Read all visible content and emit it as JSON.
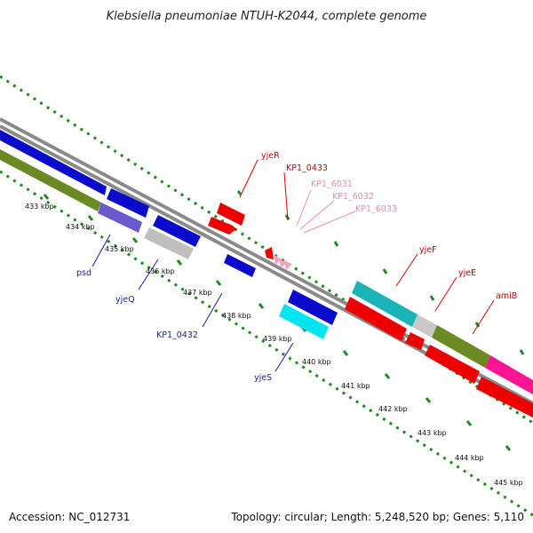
{
  "title": "Klebsiella pneumoniae NTUH-K2044, complete genome",
  "footer": {
    "accession": "Accession: NC_012731",
    "topology": "Topology: circular; Length: 5,248,520 bp; Genes: 5,110"
  },
  "colors": {
    "dots": "#1e8a1e",
    "ticks": "#1e8a1e",
    "backbone": "#8a8a8a",
    "label_red": "#cc0000",
    "label_pink": "#ee88aa",
    "label_blue": "#1a1aaa"
  },
  "scale_labels": [
    "433 kbp",
    "434 kbp",
    "435 kbp",
    "436 kbp",
    "437 kbp",
    "438 kbp",
    "439 kbp",
    "440 kbp",
    "441 kbp",
    "442 kbp",
    "443 kbp",
    "444 kbp",
    "445 kbp"
  ],
  "gene_labels": {
    "yjeR": "yjeR",
    "KP1_0433": "KP1_0433",
    "KP1_6031": "KP1_6031",
    "KP1_6032": "KP1_6032",
    "KP1_6033": "KP1_6033",
    "yjeF": "yjeF",
    "yjeE": "yjeE",
    "amiB": "amiB",
    "psd": "psd",
    "yjeQ": "yjeQ",
    "KP1_0432": "KP1_0432",
    "yjeS": "yjeS"
  }
}
